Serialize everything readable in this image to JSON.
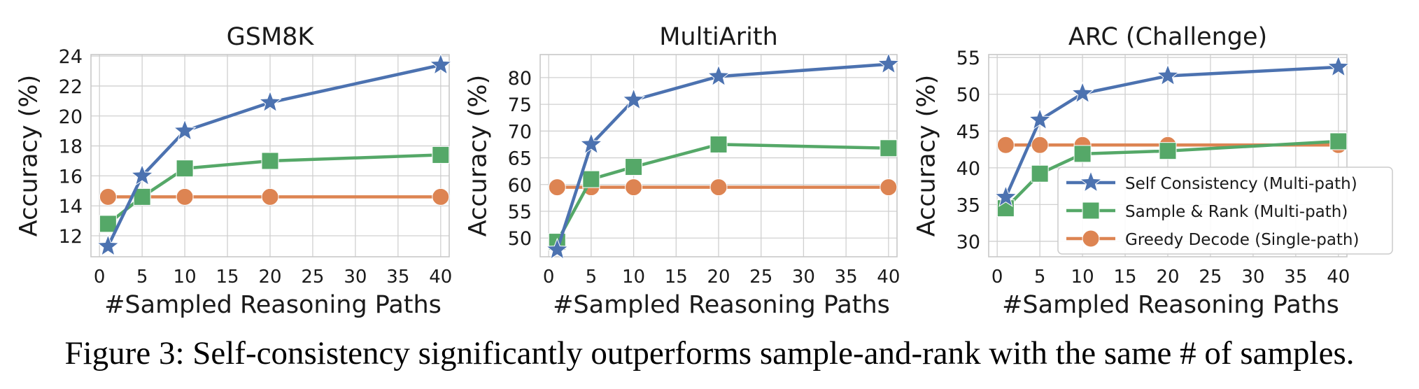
{
  "caption": "Figure 3: Self-consistency significantly outperforms sample-and-rank with the same # of samples.",
  "colors": {
    "self_consistency": "#4c72b0",
    "sample_rank": "#55a868",
    "greedy": "#dd8452",
    "grid": "#d0d0d0",
    "axis": "#c8c8c8"
  },
  "legend": {
    "placement": "center-right of third panel",
    "entries": [
      "Self Consistency (Multi-path)",
      "Sample & Rank (Multi-path)",
      "Greedy Decode (Single-path)"
    ]
  },
  "chart_data": [
    {
      "type": "line",
      "title": "GSM8K",
      "xlabel": "#Sampled Reasoning Paths",
      "ylabel": "Accuracy (%)",
      "xlim": [
        -1,
        41
      ],
      "ylim": [
        10.6,
        24.1
      ],
      "xticks": [
        0,
        5,
        10,
        15,
        20,
        25,
        30,
        35,
        40
      ],
      "yticks": [
        12,
        14,
        16,
        18,
        20,
        22,
        24
      ],
      "grid": true,
      "x": [
        1,
        5,
        10,
        20,
        40
      ],
      "series": [
        {
          "name": "Self Consistency (Multi-path)",
          "marker": "star",
          "values": [
            11.3,
            16.0,
            19.0,
            20.9,
            23.4
          ]
        },
        {
          "name": "Sample & Rank (Multi-path)",
          "marker": "square",
          "values": [
            12.8,
            14.6,
            16.5,
            17.0,
            17.4
          ]
        },
        {
          "name": "Greedy Decode (Single-path)",
          "marker": "circle",
          "values": [
            14.6,
            14.6,
            14.6,
            14.6,
            14.6
          ]
        }
      ]
    },
    {
      "type": "line",
      "title": "MultiArith",
      "xlabel": "#Sampled Reasoning Paths",
      "ylabel": "Accuracy (%)",
      "xlim": [
        -1,
        41
      ],
      "ylim": [
        46.5,
        84.3
      ],
      "xticks": [
        0,
        5,
        10,
        15,
        20,
        25,
        30,
        35,
        40
      ],
      "yticks": [
        50,
        55,
        60,
        65,
        70,
        75,
        80
      ],
      "grid": true,
      "x": [
        1,
        5,
        10,
        20,
        40
      ],
      "series": [
        {
          "name": "Self Consistency (Multi-path)",
          "marker": "star",
          "values": [
            47.8,
            67.5,
            75.8,
            80.2,
            82.5
          ]
        },
        {
          "name": "Sample & Rank (Multi-path)",
          "marker": "square",
          "values": [
            49.3,
            61.0,
            63.3,
            67.5,
            66.8
          ]
        },
        {
          "name": "Greedy Decode (Single-path)",
          "marker": "circle",
          "values": [
            59.5,
            59.5,
            59.5,
            59.5,
            59.5
          ]
        }
      ]
    },
    {
      "type": "line",
      "title": "ARC (Challenge)",
      "xlabel": "#Sampled Reasoning Paths",
      "ylabel": "Accuracy (%)",
      "xlim": [
        -1,
        41
      ],
      "ylim": [
        27.9,
        55.4
      ],
      "xticks": [
        0,
        5,
        10,
        15,
        20,
        25,
        30,
        35,
        40
      ],
      "yticks": [
        30,
        35,
        40,
        45,
        50,
        55
      ],
      "grid": true,
      "x": [
        1,
        5,
        10,
        20,
        40
      ],
      "series": [
        {
          "name": "Self Consistency (Multi-path)",
          "marker": "star",
          "values": [
            36.0,
            46.5,
            50.1,
            52.5,
            53.7
          ]
        },
        {
          "name": "Sample & Rank (Multi-path)",
          "marker": "square",
          "values": [
            34.5,
            39.2,
            41.9,
            42.3,
            43.6
          ]
        },
        {
          "name": "Greedy Decode (Single-path)",
          "marker": "circle",
          "values": [
            43.1,
            43.1,
            43.1,
            43.1,
            43.1
          ]
        }
      ]
    }
  ]
}
